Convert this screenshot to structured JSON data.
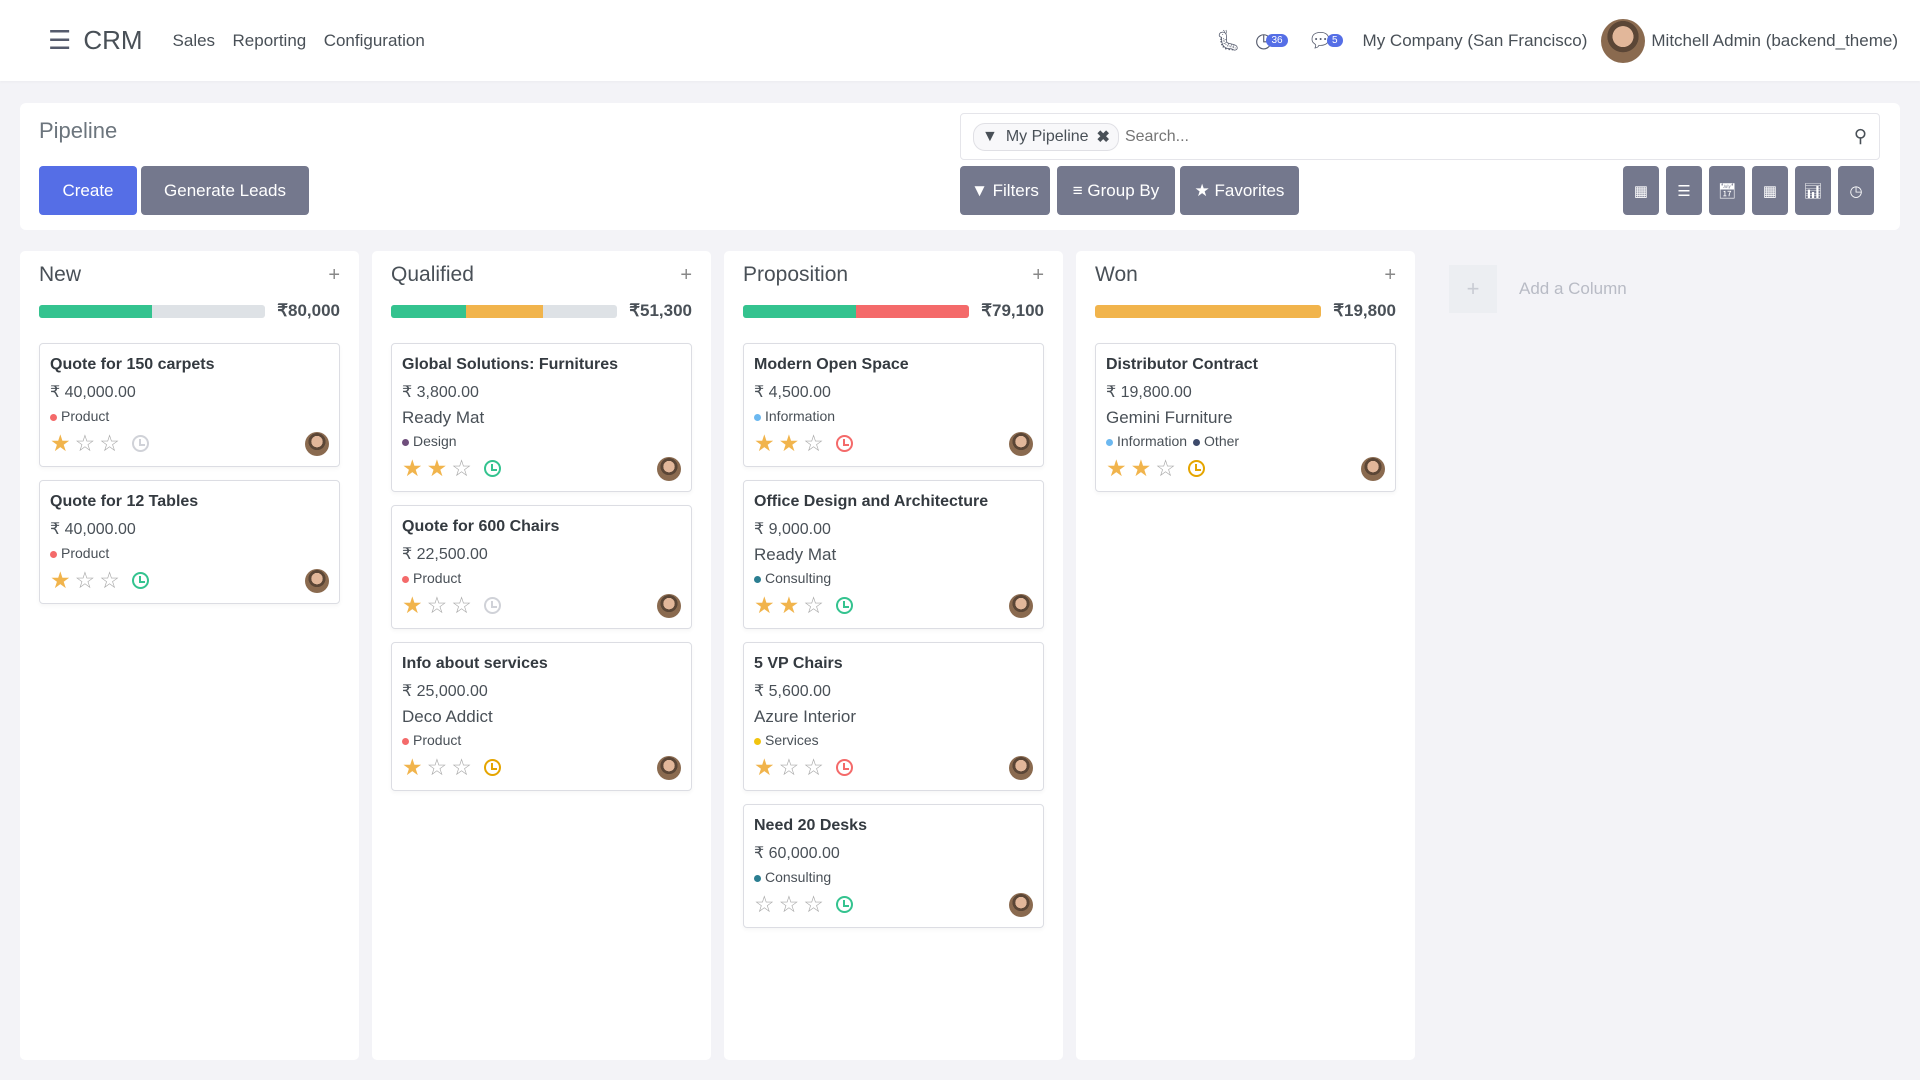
{
  "nav": {
    "app": "CRM",
    "menus": [
      "Sales",
      "Reporting",
      "Configuration"
    ],
    "activity_count": "36",
    "message_count": "5",
    "company": "My Company (San Francisco)",
    "user": "Mitchell Admin (backend_theme)"
  },
  "control": {
    "title": "Pipeline",
    "create": "Create",
    "generate": "Generate Leads",
    "facet": "My Pipeline",
    "search_placeholder": "Search...",
    "filters": "Filters",
    "group_by": "Group By",
    "favorites": "Favorites",
    "views": [
      "kanban",
      "list",
      "calendar",
      "pivot",
      "graph",
      "activity"
    ]
  },
  "add_column": "Add a Column",
  "colors": {
    "primary": "#556ee6",
    "secondary": "#74788d",
    "green": "#34c38f",
    "orange": "#f1b44c",
    "red": "#f46a6a",
    "grey": "#dee2e6"
  },
  "columns": [
    {
      "name": "New",
      "total": "₹80,000",
      "progress": [
        {
          "color": "green",
          "pct": 50
        }
      ],
      "cards": [
        {
          "name": "Quote for 150 carpets",
          "amount": "₹ 40,000.00",
          "customer": "",
          "tags": [
            {
              "label": "Product",
              "color": "#f46a6a"
            }
          ],
          "stars": 1,
          "activity": "none"
        },
        {
          "name": "Quote for 12 Tables",
          "amount": "₹ 40,000.00",
          "customer": "",
          "tags": [
            {
              "label": "Product",
              "color": "#f46a6a"
            }
          ],
          "stars": 1,
          "activity": "planned"
        }
      ]
    },
    {
      "name": "Qualified",
      "total": "₹51,300",
      "progress": [
        {
          "color": "green",
          "pct": 33
        },
        {
          "color": "orange",
          "pct": 34
        }
      ],
      "cards": [
        {
          "name": "Global Solutions: Furnitures",
          "amount": "₹ 3,800.00",
          "customer": "Ready Mat",
          "tags": [
            {
              "label": "Design",
              "color": "#6f4e7c"
            }
          ],
          "stars": 2,
          "activity": "planned"
        },
        {
          "name": "Quote for 600 Chairs",
          "amount": "₹ 22,500.00",
          "customer": "",
          "tags": [
            {
              "label": "Product",
              "color": "#f46a6a"
            }
          ],
          "stars": 1,
          "activity": "none"
        },
        {
          "name": "Info about services",
          "amount": "₹ 25,000.00",
          "customer": "Deco Addict",
          "tags": [
            {
              "label": "Product",
              "color": "#f46a6a"
            }
          ],
          "stars": 1,
          "activity": "today"
        }
      ]
    },
    {
      "name": "Proposition",
      "total": "₹79,100",
      "progress": [
        {
          "color": "green",
          "pct": 50
        },
        {
          "color": "red",
          "pct": 50
        }
      ],
      "cards": [
        {
          "name": "Modern Open Space",
          "amount": "₹ 4,500.00",
          "customer": "",
          "tags": [
            {
              "label": "Information",
              "color": "#6cb8f0"
            }
          ],
          "stars": 2,
          "activity": "overdue"
        },
        {
          "name": "Office Design and Architecture",
          "amount": "₹ 9,000.00",
          "customer": "Ready Mat",
          "tags": [
            {
              "label": "Consulting",
              "color": "#2b7e91"
            }
          ],
          "stars": 2,
          "activity": "planned"
        },
        {
          "name": "5 VP Chairs",
          "amount": "₹ 5,600.00",
          "customer": "Azure Interior",
          "tags": [
            {
              "label": "Services",
              "color": "#f1c40f"
            }
          ],
          "stars": 1,
          "activity": "overdue"
        },
        {
          "name": "Need 20 Desks",
          "amount": "₹ 60,000.00",
          "customer": "",
          "tags": [
            {
              "label": "Consulting",
              "color": "#2b7e91"
            }
          ],
          "stars": 0,
          "activity": "planned"
        }
      ]
    },
    {
      "name": "Won",
      "total": "₹19,800",
      "progress": [
        {
          "color": "orange",
          "pct": 100
        }
      ],
      "cards": [
        {
          "name": "Distributor Contract",
          "amount": "₹ 19,800.00",
          "customer": "Gemini Furniture",
          "tags": [
            {
              "label": "Information",
              "color": "#6cb8f0"
            },
            {
              "label": "Other",
              "color": "#3d4a6b"
            }
          ],
          "stars": 2,
          "activity": "today"
        }
      ]
    }
  ]
}
